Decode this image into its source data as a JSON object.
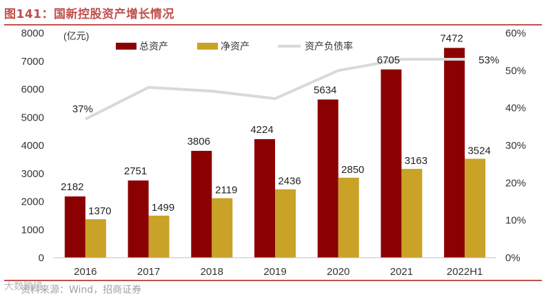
{
  "figure": {
    "title": "图141：国新控股资产增长情况",
    "source": "资料来源：Wind，招商证券",
    "watermark": "大数跨境"
  },
  "chart_data": {
    "type": "bar",
    "categories": [
      "2016",
      "2017",
      "2018",
      "2019",
      "2020",
      "2021",
      "2022H1"
    ],
    "y_unit_label": "(亿元)",
    "ylim": [
      0,
      8000
    ],
    "y_ticks": [
      0,
      1000,
      2000,
      3000,
      4000,
      5000,
      6000,
      7000,
      8000
    ],
    "y2lim": [
      0,
      60
    ],
    "y2_ticks": [
      "0%",
      "10%",
      "20%",
      "30%",
      "40%",
      "50%",
      "60%"
    ],
    "legend_position": "top-center",
    "series": [
      {
        "name": "总资产",
        "kind": "bar",
        "color": "#8b0000",
        "values": [
          2182,
          2751,
          3806,
          4224,
          5634,
          6705,
          7472
        ],
        "labels": [
          "2182",
          "2751",
          "3806",
          "4224",
          "5634",
          "6705",
          "7472"
        ]
      },
      {
        "name": "净资产",
        "kind": "bar",
        "color": "#c9a227",
        "values": [
          1370,
          1499,
          2119,
          2436,
          2850,
          3163,
          3524
        ],
        "labels": [
          "1370",
          "1499",
          "2119",
          "2436",
          "2850",
          "3163",
          "3524"
        ]
      },
      {
        "name": "资产负债率",
        "kind": "line",
        "axis": "right",
        "color": "#d9d9d9",
        "values": [
          37,
          45.5,
          44.5,
          42.5,
          50,
          53,
          53
        ],
        "labels": [
          "37%",
          "",
          "",
          "",
          "",
          "",
          "53%"
        ]
      }
    ]
  }
}
